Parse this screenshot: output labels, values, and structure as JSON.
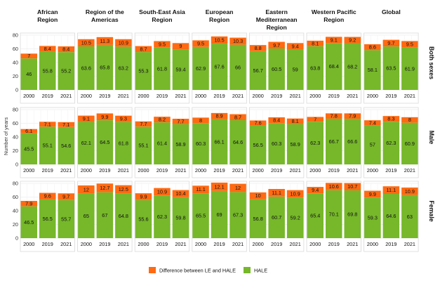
{
  "chart_data": {
    "type": "bar",
    "stacked": true,
    "ylabel": "Number of years",
    "ylim": [
      0,
      80
    ],
    "yticks": [
      0,
      20,
      40,
      60,
      80
    ],
    "grid": true,
    "legend_position": "bottom",
    "categories": [
      "2000",
      "2019",
      "2021"
    ],
    "regions": [
      {
        "label_lines": [
          "African",
          "Region"
        ]
      },
      {
        "label_lines": [
          "Region of the",
          "Americas"
        ]
      },
      {
        "label_lines": [
          "South-East Asia",
          "Region"
        ]
      },
      {
        "label_lines": [
          "European",
          "Region"
        ]
      },
      {
        "label_lines": [
          "Eastern",
          "Mediterranean",
          "Region"
        ]
      },
      {
        "label_lines": [
          "Western Pacific",
          "Region"
        ]
      },
      {
        "label_lines": [
          "Global"
        ]
      }
    ],
    "rows": [
      {
        "label": "Both sexes",
        "hale": [
          [
            46,
            55.8,
            55.2
          ],
          [
            63.6,
            65.8,
            63.2
          ],
          [
            55.3,
            61.8,
            59.4
          ],
          [
            62.9,
            67.6,
            66
          ],
          [
            56.7,
            60.5,
            59
          ],
          [
            63.8,
            68.4,
            68.2
          ],
          [
            58.1,
            63.5,
            61.9
          ]
        ],
        "diff": [
          [
            7,
            8.4,
            8.4
          ],
          [
            10.5,
            11.3,
            10.9
          ],
          [
            8.7,
            9.5,
            9
          ],
          [
            9.5,
            10.5,
            10.3
          ],
          [
            8.8,
            9.7,
            9.4
          ],
          [
            8.1,
            9.1,
            9.2
          ],
          [
            8.6,
            9.7,
            9.5
          ]
        ]
      },
      {
        "label": "Male",
        "hale": [
          [
            45.5,
            55.1,
            54.6
          ],
          [
            62.1,
            64.5,
            61.8
          ],
          [
            55.1,
            61.4,
            58.9
          ],
          [
            60.3,
            66.1,
            64.6
          ],
          [
            56.5,
            60.3,
            58.9
          ],
          [
            62.3,
            66.7,
            66.6
          ],
          [
            57,
            62.3,
            60.9
          ]
        ],
        "diff": [
          [
            6.1,
            7.1,
            7.1
          ],
          [
            9.1,
            9.9,
            9.3
          ],
          [
            7.7,
            8.2,
            7.7
          ],
          [
            8,
            8.9,
            8.7
          ],
          [
            7.6,
            8.4,
            8.1
          ],
          [
            7,
            7.8,
            7.9
          ],
          [
            7.4,
            8.3,
            8
          ]
        ]
      },
      {
        "label": "Female",
        "hale": [
          [
            46.5,
            56.5,
            55.7
          ],
          [
            65,
            67,
            64.8
          ],
          [
            55.6,
            62.3,
            59.8
          ],
          [
            65.5,
            69,
            67.3
          ],
          [
            56.8,
            60.7,
            59.2
          ],
          [
            65.4,
            70.1,
            69.8
          ],
          [
            59.3,
            64.6,
            63
          ]
        ],
        "diff": [
          [
            7.9,
            9.6,
            9.7
          ],
          [
            12,
            12.7,
            12.5
          ],
          [
            9.9,
            10.9,
            10.4
          ],
          [
            11.1,
            12.1,
            12
          ],
          [
            10,
            11.1,
            10.9
          ],
          [
            9.4,
            10.6,
            10.7
          ],
          [
            9.9,
            11.1,
            10.9
          ]
        ]
      }
    ],
    "series": [
      {
        "name": "Difference between LE and HALE",
        "color": "#ff6a13"
      },
      {
        "name": "HALE",
        "color": "#76b82a"
      }
    ]
  }
}
